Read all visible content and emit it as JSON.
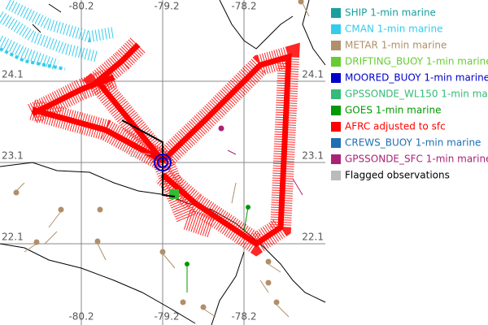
{
  "grid": {
    "lon_labels": [
      "-80.2",
      "-79.2",
      "-78.2"
    ],
    "lat_labels": [
      "24.1",
      "23.1",
      "22.1"
    ]
  },
  "legend": [
    {
      "label": "SHIP 1-min marine",
      "color": "#1a9e9e",
      "text_color": "#1a9e9e"
    },
    {
      "label": "CMAN 1-min marine",
      "color": "#33ccee",
      "text_color": "#33ccee"
    },
    {
      "label": "METAR 1-min marine",
      "color": "#b08f6a",
      "text_color": "#b08f6a"
    },
    {
      "label": "DRIFTING_BUOY 1-min marine",
      "color": "#66cc33",
      "text_color": "#66cc33"
    },
    {
      "label": "MOORED_BUOY 1-min marine",
      "color": "#0000cc",
      "text_color": "#0000cc"
    },
    {
      "label": "GPSSONDE_WL150 1-min mar",
      "color": "#33bb77",
      "text_color": "#33bb77"
    },
    {
      "label": "GOES 1-min marine",
      "color": "#009900",
      "text_color": "#009900"
    },
    {
      "label": "AFRC adjusted to sfc",
      "color": "#ff0000",
      "text_color": "#ff0000"
    },
    {
      "label": "CREWS_BUOY 1-min marine",
      "color": "#1e6eb4",
      "text_color": "#1e6eb4"
    },
    {
      "label": "GPSSONDE_SFC 1-min marine",
      "color": "#aa2277",
      "text_color": "#aa2277"
    },
    {
      "label": "Flagged observations",
      "color": "#bbbbbb",
      "text_color": "#000000"
    }
  ]
}
